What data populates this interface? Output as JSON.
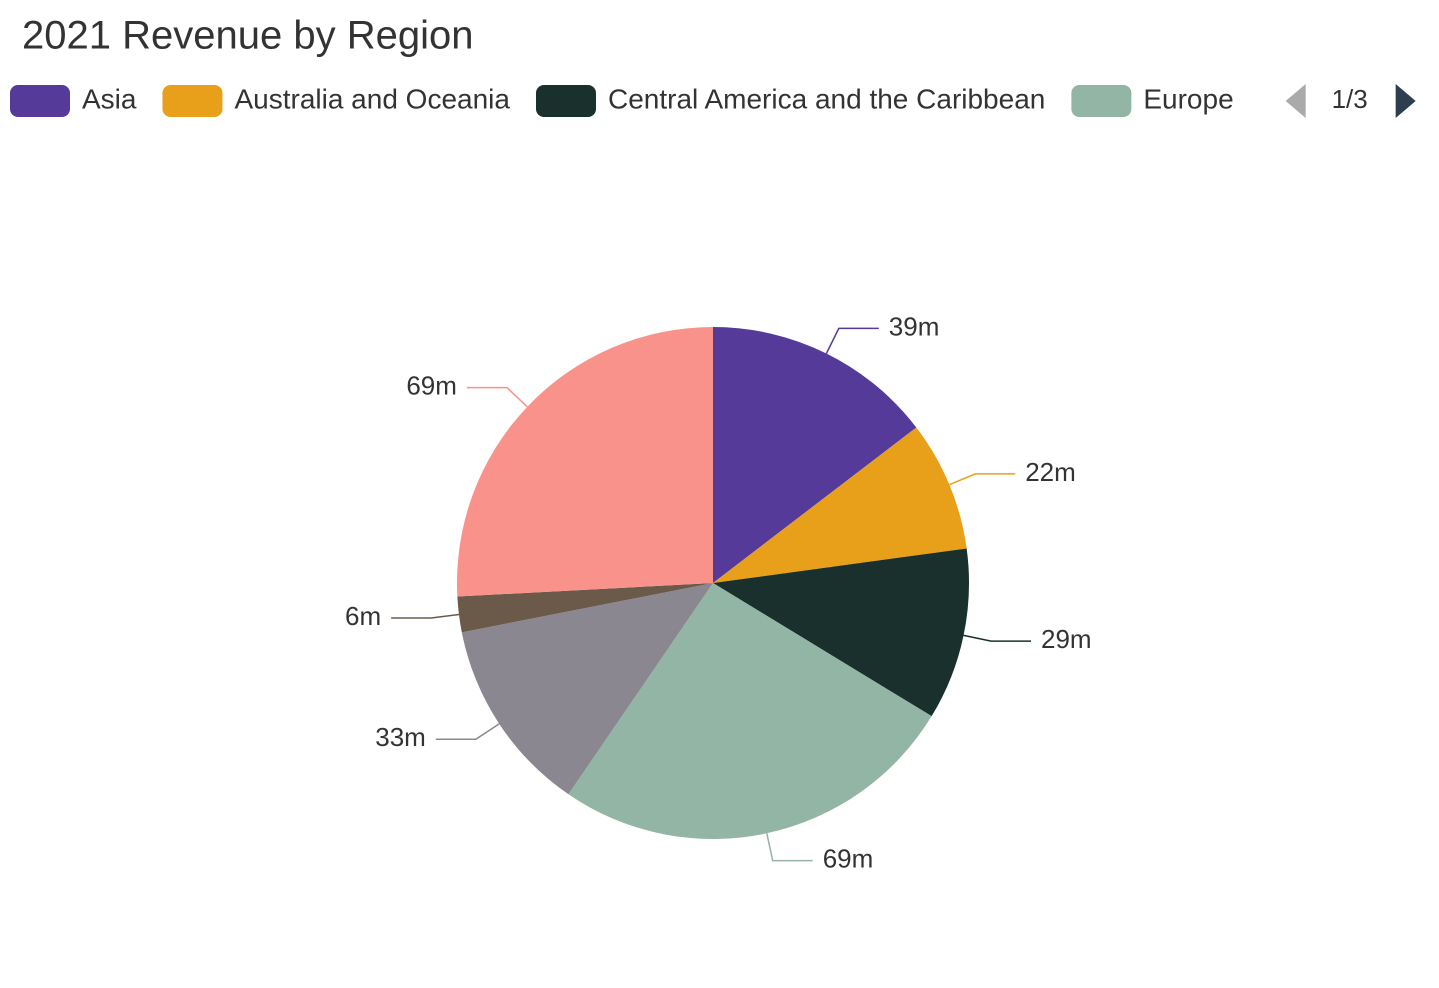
{
  "chart_data": {
    "type": "pie",
    "title": "2021 Revenue by Region",
    "categories": [
      "Asia",
      "Australia and Oceania",
      "Central America and the Caribbean",
      "Europe",
      null,
      null,
      null
    ],
    "values": [
      39,
      22,
      29,
      69,
      33,
      6,
      69
    ],
    "value_labels": [
      "39m",
      "22m",
      "29m",
      "69m",
      "33m",
      "6m",
      "69m"
    ],
    "colors": [
      "#553a99",
      "#e8a01a",
      "#1a302c",
      "#93b5a5",
      "#8a8790",
      "#6b5a4a",
      "#f9928a"
    ],
    "legend": {
      "position": "top",
      "page": "1/3"
    }
  }
}
